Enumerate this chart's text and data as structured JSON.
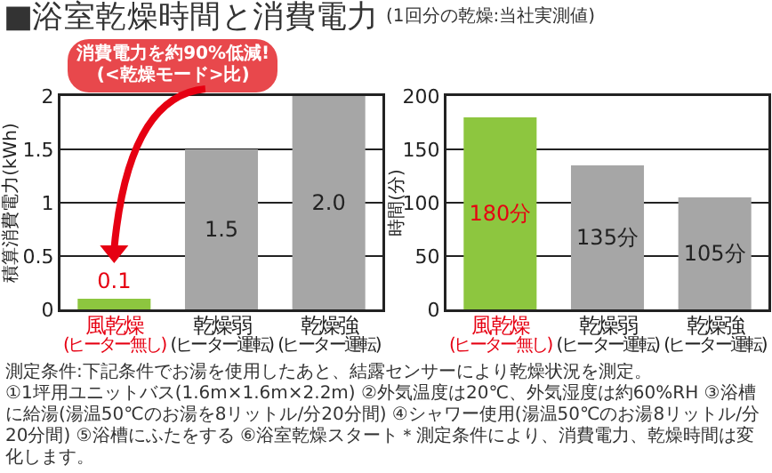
{
  "chart_data": [
    {
      "type": "bar",
      "title": "■浴室乾燥時間と消費電力",
      "categories": [
        "風乾燥\n(ヒーター無し)",
        "乾燥弱\n(ヒーター運転)",
        "乾燥強\n(ヒーター運転)"
      ],
      "values": [
        0.1,
        1.5,
        2.0
      ],
      "colors": [
        "#8dc63f",
        "#a6a6a6",
        "#a6a6a6"
      ],
      "value_labels": [
        "0.1",
        "1.5",
        "2.0"
      ],
      "ylim": [
        0,
        2
      ],
      "yticks": [
        0,
        0.5,
        1,
        1.5,
        2
      ],
      "ylabel": "積算消費電力(kWh)",
      "grid": "y",
      "annotations": [
        "消費電力を約90%低減!(<乾燥モード>比)",
        "測定条件:下記条件でお湯を使用したあと、結露センサーにより乾燥状況を測定。",
        "①1坪用ユニットバス(1.6m×1.6m×2.2m) ②外気温度は20℃、外気湿度は約60%RH ③浴槽に給湯(湯温50℃のお湯を8リットル/分20分間) ④シャワー使用(湯温50℃のお湯8リットル/分20分間) ⑤浴槽にふたをする ⑥浴室乾燥スタート＊測定条件により、消費電力、乾燥時間は変化します。"
      ]
    },
    {
      "type": "bar",
      "subtitle": "(1回分の乾燥:当社実測値)",
      "categories": [
        "風乾燥\n(ヒーター無し)",
        "乾燥弱\n(ヒーター運転)",
        "乾燥強\n(ヒーター運転)"
      ],
      "values": [
        180,
        135,
        105
      ],
      "colors": [
        "#8dc63f",
        "#a6a6a6",
        "#a6a6a6"
      ],
      "value_labels": [
        "180分",
        "135分",
        "105分"
      ],
      "ylim": [
        0,
        200
      ],
      "yticks": [
        0,
        50,
        100,
        150,
        200
      ],
      "ylabel": "時間(分)",
      "grid": "y"
    }
  ]
}
